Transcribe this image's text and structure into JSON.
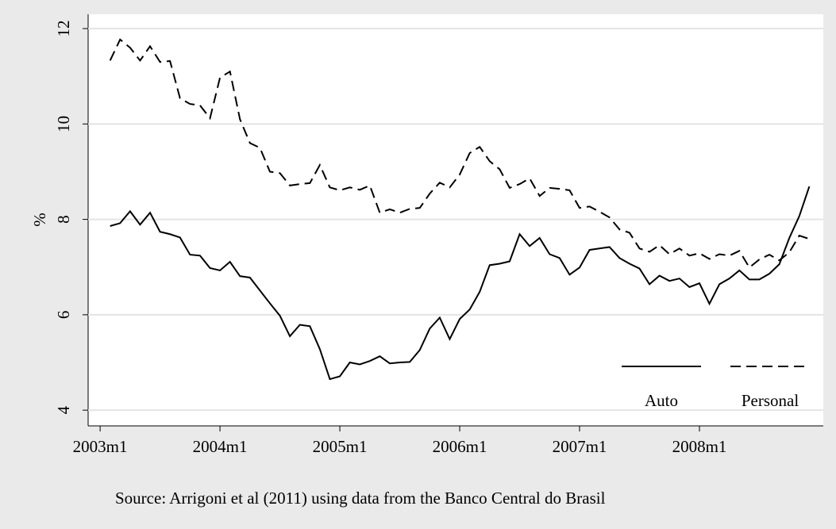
{
  "chart_data": {
    "type": "line",
    "y_label": "%",
    "source": "Source: Arrigoni et al (2011) using data from the Banco Central do Brasil",
    "x": [
      517,
      518,
      519,
      520,
      521,
      522,
      523,
      524,
      525,
      526,
      527,
      528,
      529,
      530,
      531,
      532,
      533,
      534,
      535,
      536,
      537,
      538,
      539,
      540,
      541,
      542,
      543,
      544,
      545,
      546,
      547,
      548,
      549,
      550,
      551,
      552,
      553,
      554,
      555,
      556,
      557,
      558,
      559,
      560,
      561,
      562,
      563,
      564,
      565,
      566,
      567,
      568,
      569,
      570,
      571,
      572,
      573,
      574,
      575,
      576,
      577,
      578,
      579,
      580,
      581,
      582,
      583,
      584,
      585,
      586,
      587
    ],
    "series": [
      {
        "name": "Auto",
        "color": "#000000",
        "dash": "solid",
        "values": [
          7.86,
          7.92,
          8.17,
          7.89,
          8.14,
          7.74,
          7.69,
          7.62,
          7.26,
          7.24,
          6.98,
          6.93,
          7.11,
          6.81,
          6.78,
          6.51,
          6.24,
          5.98,
          5.55,
          5.79,
          5.76,
          5.28,
          4.65,
          4.71,
          5.0,
          4.96,
          5.03,
          5.13,
          4.98,
          5.0,
          5.01,
          5.26,
          5.71,
          5.94,
          5.49,
          5.91,
          6.11,
          6.48,
          7.04,
          7.07,
          7.12,
          7.69,
          7.44,
          7.61,
          7.27,
          7.19,
          6.84,
          6.99,
          7.36,
          7.39,
          7.42,
          7.19,
          7.07,
          6.97,
          6.64,
          6.82,
          6.71,
          6.76,
          6.58,
          6.66,
          6.23,
          6.64,
          6.76,
          6.93,
          6.74,
          6.74,
          6.86,
          7.06,
          7.61,
          8.07,
          8.69
        ]
      },
      {
        "name": "Personal",
        "color": "#000000",
        "dash": "dashed",
        "values": [
          11.33,
          11.77,
          11.6,
          11.33,
          11.63,
          11.3,
          11.32,
          10.54,
          10.42,
          10.39,
          10.12,
          10.97,
          11.1,
          10.1,
          9.6,
          9.5,
          9.0,
          8.97,
          8.71,
          8.74,
          8.76,
          9.14,
          8.67,
          8.61,
          8.67,
          8.62,
          8.71,
          8.14,
          8.21,
          8.14,
          8.22,
          8.24,
          8.54,
          8.77,
          8.67,
          8.94,
          9.39,
          9.52,
          9.22,
          9.05,
          8.66,
          8.74,
          8.86,
          8.49,
          8.66,
          8.64,
          8.61,
          8.24,
          8.27,
          8.16,
          8.04,
          7.79,
          7.72,
          7.39,
          7.32,
          7.46,
          7.27,
          7.39,
          7.24,
          7.29,
          7.17,
          7.27,
          7.24,
          7.34,
          6.99,
          7.16,
          7.26,
          7.14,
          7.31,
          7.66,
          7.59
        ]
      }
    ],
    "xlim": [
      514.8,
      588.4
    ],
    "xticks": [
      {
        "value": 516,
        "label": "2003m1"
      },
      {
        "value": 528,
        "label": "2004m1"
      },
      {
        "value": 540,
        "label": "2005m1"
      },
      {
        "value": 552,
        "label": "2006m1"
      },
      {
        "value": 564,
        "label": "2007m1"
      },
      {
        "value": 576,
        "label": "2008m1"
      }
    ],
    "ylim": [
      3.67,
      12.3
    ],
    "yticks": [
      4,
      6,
      8,
      10,
      12
    ],
    "grid": true,
    "legend": "lower right"
  }
}
